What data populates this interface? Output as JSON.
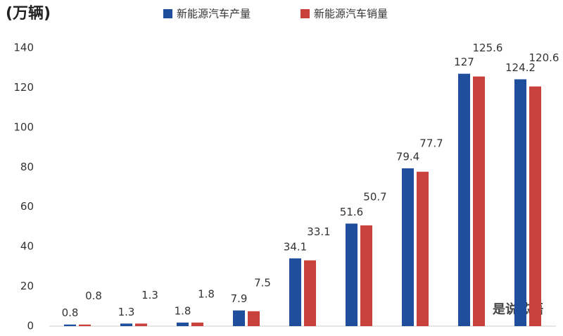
{
  "chart_data": {
    "type": "bar",
    "y_label": "(万辆)",
    "categories": [
      null,
      null,
      null,
      null,
      null,
      null,
      null,
      null,
      null
    ],
    "series": [
      {
        "name": "新能源汽车产量",
        "color": "#1f4e9c",
        "values": [
          0.8,
          1.3,
          1.8,
          7.9,
          34.1,
          51.6,
          79.4,
          127,
          124.2
        ]
      },
      {
        "name": "新能源汽车销量",
        "color": "#c9413b",
        "values": [
          0.8,
          1.3,
          1.8,
          7.5,
          33.1,
          50.7,
          77.7,
          125.6,
          120.6
        ]
      }
    ],
    "ylim": [
      0,
      140
    ],
    "yticks": [
      0,
      20,
      40,
      60,
      80,
      100,
      120,
      140
    ],
    "grid": false,
    "legend": "top",
    "watermark": "是说芯语"
  }
}
